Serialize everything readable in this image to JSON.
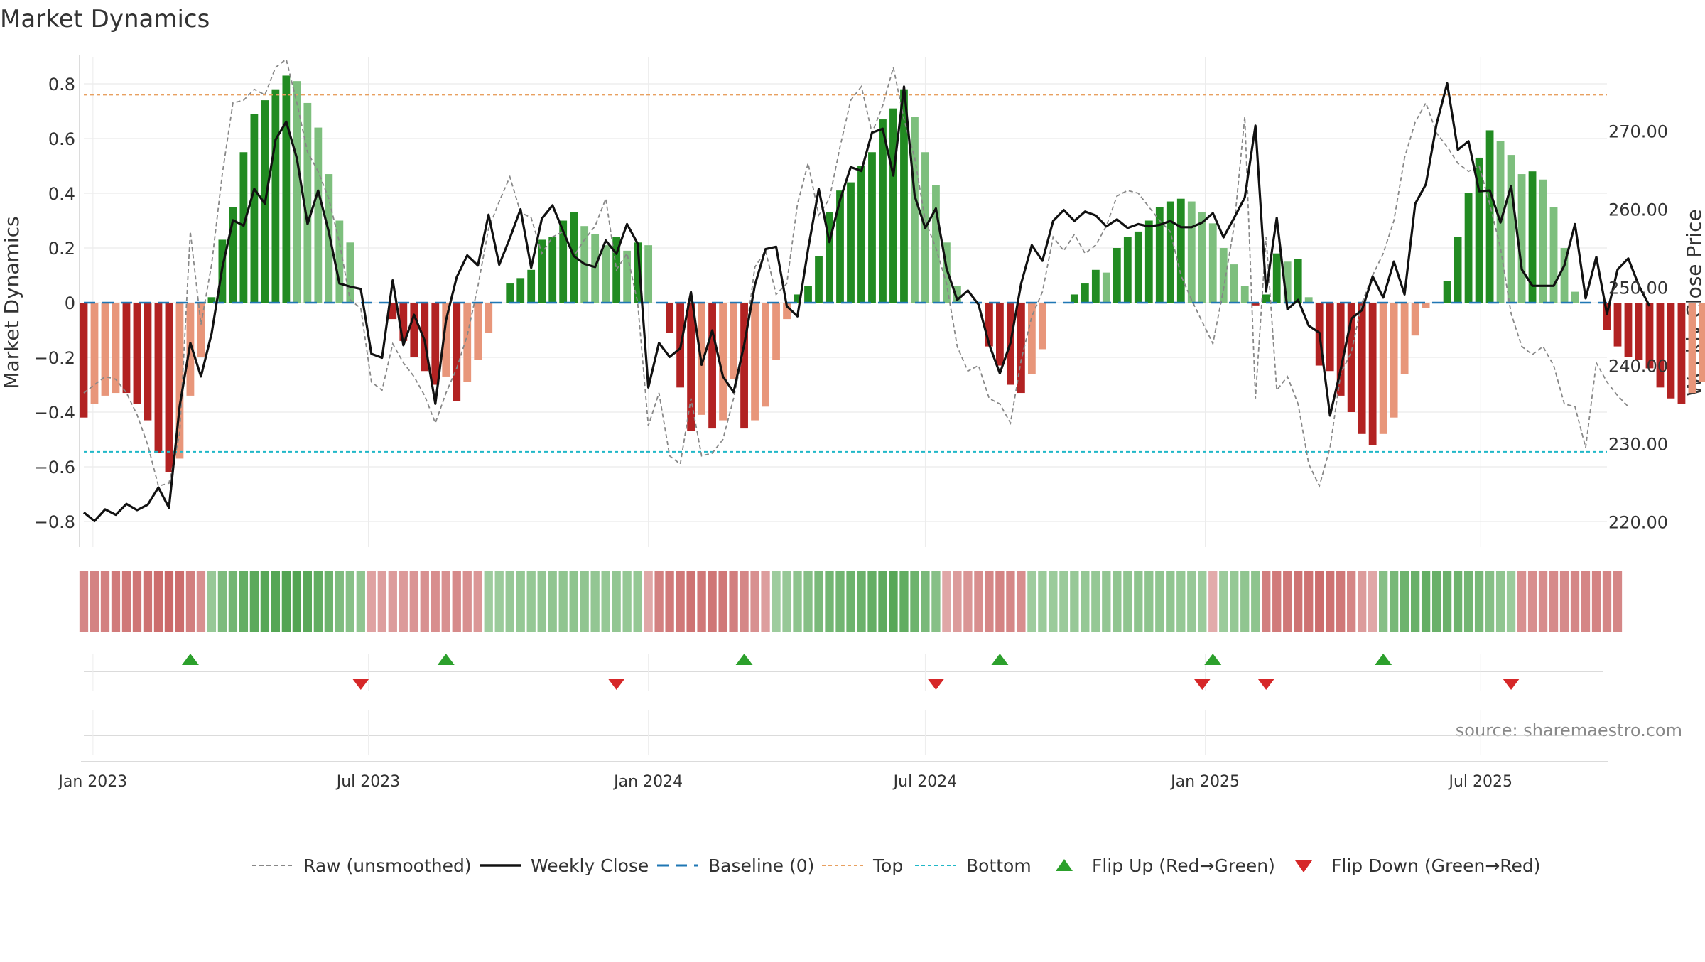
{
  "title": "Market Dynamics",
  "source": "source: sharemaestro.com",
  "chart_data": {
    "type": "bar",
    "title": "Market Dynamics",
    "ylabel_left": "Market Dynamics",
    "ylabel_right": "Weekly Close Price",
    "ylim_left": [
      -0.88,
      0.9
    ],
    "ylim_right": [
      217.0,
      278.5
    ],
    "yticks_left": [
      -0.8,
      -0.6,
      -0.4,
      -0.2,
      0,
      0.2,
      0.4,
      0.6,
      0.8
    ],
    "ytick_labels_left": [
      "−0.8",
      "−0.6",
      "−0.4",
      "−0.2",
      "0",
      "0.2",
      "0.4",
      "0.6",
      "0.8"
    ],
    "yticks_right": [
      220,
      230,
      240,
      250,
      260,
      270
    ],
    "ytick_labels_right": [
      "220.00",
      "230.00",
      "240.00",
      "250.00",
      "260.00",
      "270.00"
    ],
    "x_start": "2022-12-26",
    "x_end": "2025-09-22",
    "x_tick_dates": [
      "2023-01-01",
      "2023-07-01",
      "2024-01-01",
      "2024-07-01",
      "2025-01-01",
      "2025-07-01"
    ],
    "x_tick_labels": [
      "Jan 2023",
      "Jul 2023",
      "Jan 2024",
      "Jul 2024",
      "Jan 2025",
      "Jul 2025"
    ],
    "grid": true,
    "legend_placement": "bottom-center",
    "top_threshold": 0.76,
    "bottom_threshold": -0.545,
    "baseline": 0,
    "colors": {
      "strong_green": "#228b22",
      "light_green": "#7dbf7d",
      "strong_red": "#b22222",
      "light_red": "#e8967a",
      "close": "#111111",
      "raw": "#888888",
      "baseline": "#1f77b4",
      "top": "#e8a060",
      "bottom": "#20b8c8",
      "flip_up": "#2ca02c",
      "flip_down": "#d62728"
    },
    "series": [
      {
        "name": "Market Dynamics",
        "values": [
          -0.42,
          -0.37,
          -0.34,
          -0.33,
          -0.33,
          -0.37,
          -0.43,
          -0.55,
          -0.62,
          -0.57,
          -0.34,
          -0.2,
          0.02,
          0.23,
          0.35,
          0.55,
          0.69,
          0.74,
          0.78,
          0.83,
          0.81,
          0.73,
          0.64,
          0.47,
          0.3,
          0.22,
          0,
          0,
          0,
          -0.06,
          -0.14,
          -0.2,
          -0.25,
          -0.3,
          -0.27,
          -0.36,
          -0.29,
          -0.21,
          -0.11,
          0,
          0.07,
          0.09,
          0.12,
          0.23,
          0.24,
          0.3,
          0.33,
          0.28,
          0.25,
          0.21,
          0.24,
          0.19,
          0.22,
          0.21,
          0,
          -0.11,
          -0.31,
          -0.47,
          -0.41,
          -0.46,
          -0.43,
          -0.28,
          -0.46,
          -0.43,
          -0.38,
          -0.21,
          -0.06,
          0.03,
          0.06,
          0.17,
          0.33,
          0.41,
          0.44,
          0.5,
          0.55,
          0.67,
          0.71,
          0.78,
          0.68,
          0.55,
          0.43,
          0.22,
          0.06,
          0,
          0,
          -0.16,
          -0.23,
          -0.3,
          -0.33,
          -0.26,
          -0.17,
          0,
          0,
          0.03,
          0.07,
          0.12,
          0.11,
          0.2,
          0.24,
          0.26,
          0.3,
          0.35,
          0.37,
          0.38,
          0.37,
          0.33,
          0.29,
          0.2,
          0.14,
          0.06,
          -0.01,
          0.03,
          0.18,
          0.15,
          0.16,
          0.02,
          -0.23,
          -0.25,
          -0.34,
          -0.4,
          -0.48,
          -0.52,
          -0.48,
          -0.42,
          -0.26,
          -0.12,
          -0.02,
          0,
          0.08,
          0.24,
          0.4,
          0.53,
          0.63,
          0.59,
          0.54,
          0.47,
          0.48,
          0.45,
          0.35,
          0.2,
          0.04,
          0,
          0,
          -0.1,
          -0.16,
          -0.2,
          -0.21,
          -0.24,
          -0.31,
          -0.35,
          -0.37,
          -0.33,
          -0.29
        ]
      },
      {
        "name": "Weekly Close",
        "values": [
          221.2,
          220.1,
          221.6,
          220.9,
          222.3,
          221.5,
          222.2,
          224.4,
          221.8,
          234.8,
          242.9,
          238.6,
          244.1,
          252.5,
          258.6,
          257.9,
          262.6,
          260.7,
          268.9,
          271.2,
          266.5,
          258.1,
          262.4,
          257.1,
          250.5,
          250.1,
          249.8,
          241.5,
          241.0,
          250.9,
          242.6,
          246.5,
          243.2,
          235.1,
          245.8,
          251.3,
          254.1,
          252.8,
          259.3,
          252.9,
          256.3,
          260.0,
          252.5,
          258.8,
          260.5,
          257.2,
          254.0,
          253.0,
          252.6,
          256.0,
          254.3,
          258.1,
          255.6,
          237.2,
          242.9,
          241.1,
          242.2,
          249.4,
          240.1,
          244.5,
          238.6,
          236.6,
          242.7,
          250.3,
          254.9,
          255.2,
          247.6,
          246.3,
          254.9,
          262.6,
          255.8,
          261.2,
          265.4,
          264.9,
          269.8,
          270.3,
          264.3,
          275.7,
          261.7,
          257.6,
          260.1,
          252.4,
          248.4,
          249.6,
          247.8,
          242.7,
          239.0,
          242.9,
          250.5,
          255.4,
          253.4,
          258.5,
          259.9,
          258.5,
          259.7,
          259.2,
          257.8,
          258.7,
          257.6,
          258.1,
          257.8,
          258.0,
          258.5,
          257.7,
          257.7,
          258.3,
          259.5,
          256.4,
          258.9,
          261.5,
          270.7,
          249.5,
          258.9,
          247.2,
          248.4,
          245.1,
          244.2,
          233.6,
          239.5,
          246.0,
          247.1,
          251.4,
          248.7,
          253.3,
          249.1,
          260.7,
          263.2,
          270.9,
          276.1,
          267.6,
          268.7,
          262.3,
          262.4,
          258.3,
          263.0,
          252.3,
          250.2,
          250.2,
          250.2,
          252.8,
          258.1,
          248.6,
          253.9,
          246.6,
          252.3,
          253.7,
          250.2,
          247.6
        ]
      },
      {
        "name": "Raw (unsmoothed)",
        "values": [
          -0.33,
          -0.3,
          -0.27,
          -0.28,
          -0.33,
          -0.41,
          -0.52,
          -0.67,
          -0.66,
          -0.48,
          0.26,
          -0.08,
          0.14,
          0.47,
          0.73,
          0.74,
          0.78,
          0.76,
          0.86,
          0.89,
          0.73,
          0.55,
          0.48,
          0.38,
          0.22,
          0.01,
          -0.02,
          -0.29,
          -0.32,
          -0.15,
          -0.22,
          -0.27,
          -0.34,
          -0.44,
          -0.33,
          -0.24,
          -0.12,
          0.06,
          0.27,
          0.37,
          0.46,
          0.33,
          0.31,
          0.18,
          0.24,
          0.26,
          0.17,
          0.23,
          0.28,
          0.38,
          0.12,
          0.18,
          0.0,
          -0.45,
          -0.33,
          -0.56,
          -0.59,
          -0.35,
          -0.56,
          -0.55,
          -0.5,
          -0.35,
          -0.16,
          0.13,
          0.19,
          0.03,
          0.07,
          0.36,
          0.51,
          0.32,
          0.38,
          0.57,
          0.74,
          0.79,
          0.62,
          0.72,
          0.86,
          0.67,
          0.53,
          0.3,
          0.2,
          0.07,
          -0.16,
          -0.25,
          -0.23,
          -0.35,
          -0.37,
          -0.44,
          -0.21,
          -0.05,
          0.04,
          0.24,
          0.19,
          0.25,
          0.18,
          0.21,
          0.28,
          0.39,
          0.41,
          0.4,
          0.35,
          0.3,
          0.26,
          0.1,
          0.01,
          -0.07,
          -0.15,
          0.05,
          0.28,
          0.68,
          -0.35,
          0.24,
          -0.32,
          -0.27,
          -0.37,
          -0.59,
          -0.67,
          -0.53,
          -0.26,
          -0.18,
          0.0,
          0.1,
          0.18,
          0.3,
          0.53,
          0.66,
          0.73,
          0.62,
          0.57,
          0.51,
          0.48,
          0.5,
          0.36,
          0.2,
          -0.04,
          -0.16,
          -0.19,
          -0.16,
          -0.23,
          -0.37,
          -0.38,
          -0.53,
          -0.22,
          -0.29,
          -0.34,
          -0.38
        ]
      }
    ],
    "regime_strip_levels": [
      -0.51,
      -0.53,
      -0.54,
      -0.58,
      -0.6,
      -0.61,
      -0.62,
      -0.66,
      -0.69,
      -0.67,
      -0.56,
      -0.44,
      0.4,
      0.57,
      0.64,
      0.72,
      0.78,
      0.8,
      0.82,
      0.84,
      0.83,
      0.79,
      0.74,
      0.66,
      0.56,
      0.5,
      0.44,
      -0.34,
      -0.36,
      -0.38,
      -0.39,
      -0.41,
      -0.44,
      -0.46,
      -0.45,
      -0.48,
      -0.44,
      -0.4,
      0.36,
      0.38,
      0.4,
      0.41,
      0.42,
      0.43,
      0.44,
      0.45,
      0.46,
      0.44,
      0.43,
      0.42,
      0.43,
      0.41,
      0.42,
      -0.3,
      -0.54,
      -0.58,
      -0.6,
      -0.62,
      -0.6,
      -0.61,
      -0.6,
      -0.56,
      -0.5,
      -0.44,
      -0.36,
      0.36,
      0.4,
      0.46,
      0.52,
      0.58,
      0.62,
      0.64,
      0.66,
      0.68,
      0.72,
      0.76,
      0.8,
      0.74,
      0.66,
      0.58,
      0.5,
      -0.3,
      -0.38,
      -0.42,
      -0.46,
      -0.5,
      -0.53,
      -0.5,
      -0.46,
      0.36,
      0.37,
      0.38,
      0.39,
      0.4,
      0.41,
      0.42,
      0.43,
      0.44,
      0.45,
      0.46,
      0.46,
      0.45,
      0.44,
      0.42,
      0.4,
      0.38,
      -0.28,
      0.38,
      0.42,
      0.44,
      0.46,
      -0.55,
      -0.58,
      -0.6,
      -0.62,
      -0.64,
      -0.66,
      -0.64,
      -0.6,
      -0.52,
      -0.38,
      -0.3,
      0.52,
      0.6,
      0.66,
      0.7,
      0.72,
      0.7,
      0.68,
      0.66,
      0.64,
      0.6,
      0.52,
      0.44,
      0.38,
      -0.45,
      -0.46,
      -0.47,
      -0.48,
      -0.49,
      -0.5,
      -0.52,
      -0.53,
      -0.52,
      -0.5
    ],
    "flips_up": [
      "2023-03-06",
      "2023-08-21",
      "2024-03-04",
      "2024-08-19",
      "2025-01-06",
      "2025-04-28"
    ],
    "flips_down": [
      "2023-06-26",
      "2023-12-11",
      "2024-07-08",
      "2024-12-30",
      "2025-02-10",
      "2025-07-21"
    ],
    "legend": [
      {
        "label": "Raw (unsmoothed)",
        "kind": "dashed",
        "color": "#888888"
      },
      {
        "label": "Weekly Close",
        "kind": "solid",
        "color": "#111111"
      },
      {
        "label": "Baseline (0)",
        "kind": "dash",
        "color": "#1f77b4"
      },
      {
        "label": "Top",
        "kind": "dotted",
        "color": "#e8a060"
      },
      {
        "label": "Bottom",
        "kind": "dotted",
        "color": "#20b8c8"
      },
      {
        "label": "Flip Up (Red→Green)",
        "kind": "tri-up",
        "color": "#2ca02c"
      },
      {
        "label": "Flip Down (Green→Red)",
        "kind": "tri-down",
        "color": "#d62728"
      }
    ]
  }
}
